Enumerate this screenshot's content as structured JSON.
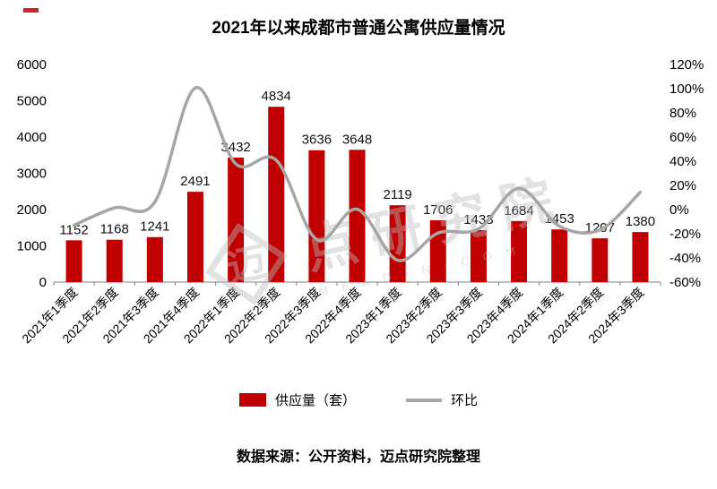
{
  "title": "2021年以来成都市普通公寓供应量情况",
  "legend": {
    "bars": "供应量（套）",
    "line": "环比"
  },
  "footer": "数据来源：公开资料，迈点研究院整理",
  "watermark": {
    "logo_char": "迈",
    "text": "点研究院",
    "sub": "M E A D I N · C O M",
    "color": "#bcbcbc"
  },
  "chart_data": {
    "type": "bar",
    "subtype": "bar+line-combo",
    "title": "2021年以来成都市普通公寓供应量情况",
    "categories": [
      "2021年1季度",
      "2021年2季度",
      "2021年3季度",
      "2021年4季度",
      "2022年1季度",
      "2022年2季度",
      "2022年3季度",
      "2022年4季度",
      "2023年1季度",
      "2023年2季度",
      "2023年3季度",
      "2023年4季度",
      "2024年1季度",
      "2024年2季度",
      "2024年3季度"
    ],
    "series": [
      {
        "name": "供应量（套）",
        "type": "bar",
        "axis": "left",
        "color": "#c00000",
        "values": [
          1152,
          1168,
          1241,
          2491,
          3432,
          4834,
          3636,
          3648,
          2119,
          1706,
          1433,
          1684,
          1453,
          1207,
          1380
        ]
      },
      {
        "name": "环比",
        "type": "line",
        "axis": "right",
        "color": "#a6a6a6",
        "values_percent": [
          -13.0,
          1.4,
          6.3,
          100.7,
          37.8,
          40.9,
          -24.8,
          0.3,
          -41.9,
          -19.5,
          -16.0,
          17.5,
          -13.7,
          -16.9,
          14.3
        ]
      }
    ],
    "left_axis": {
      "min": 0,
      "max": 6000,
      "step": 1000
    },
    "right_axis": {
      "min": -60,
      "max": 120,
      "step": 20,
      "format": "percent"
    },
    "grid": false,
    "legend_position": "bottom"
  }
}
